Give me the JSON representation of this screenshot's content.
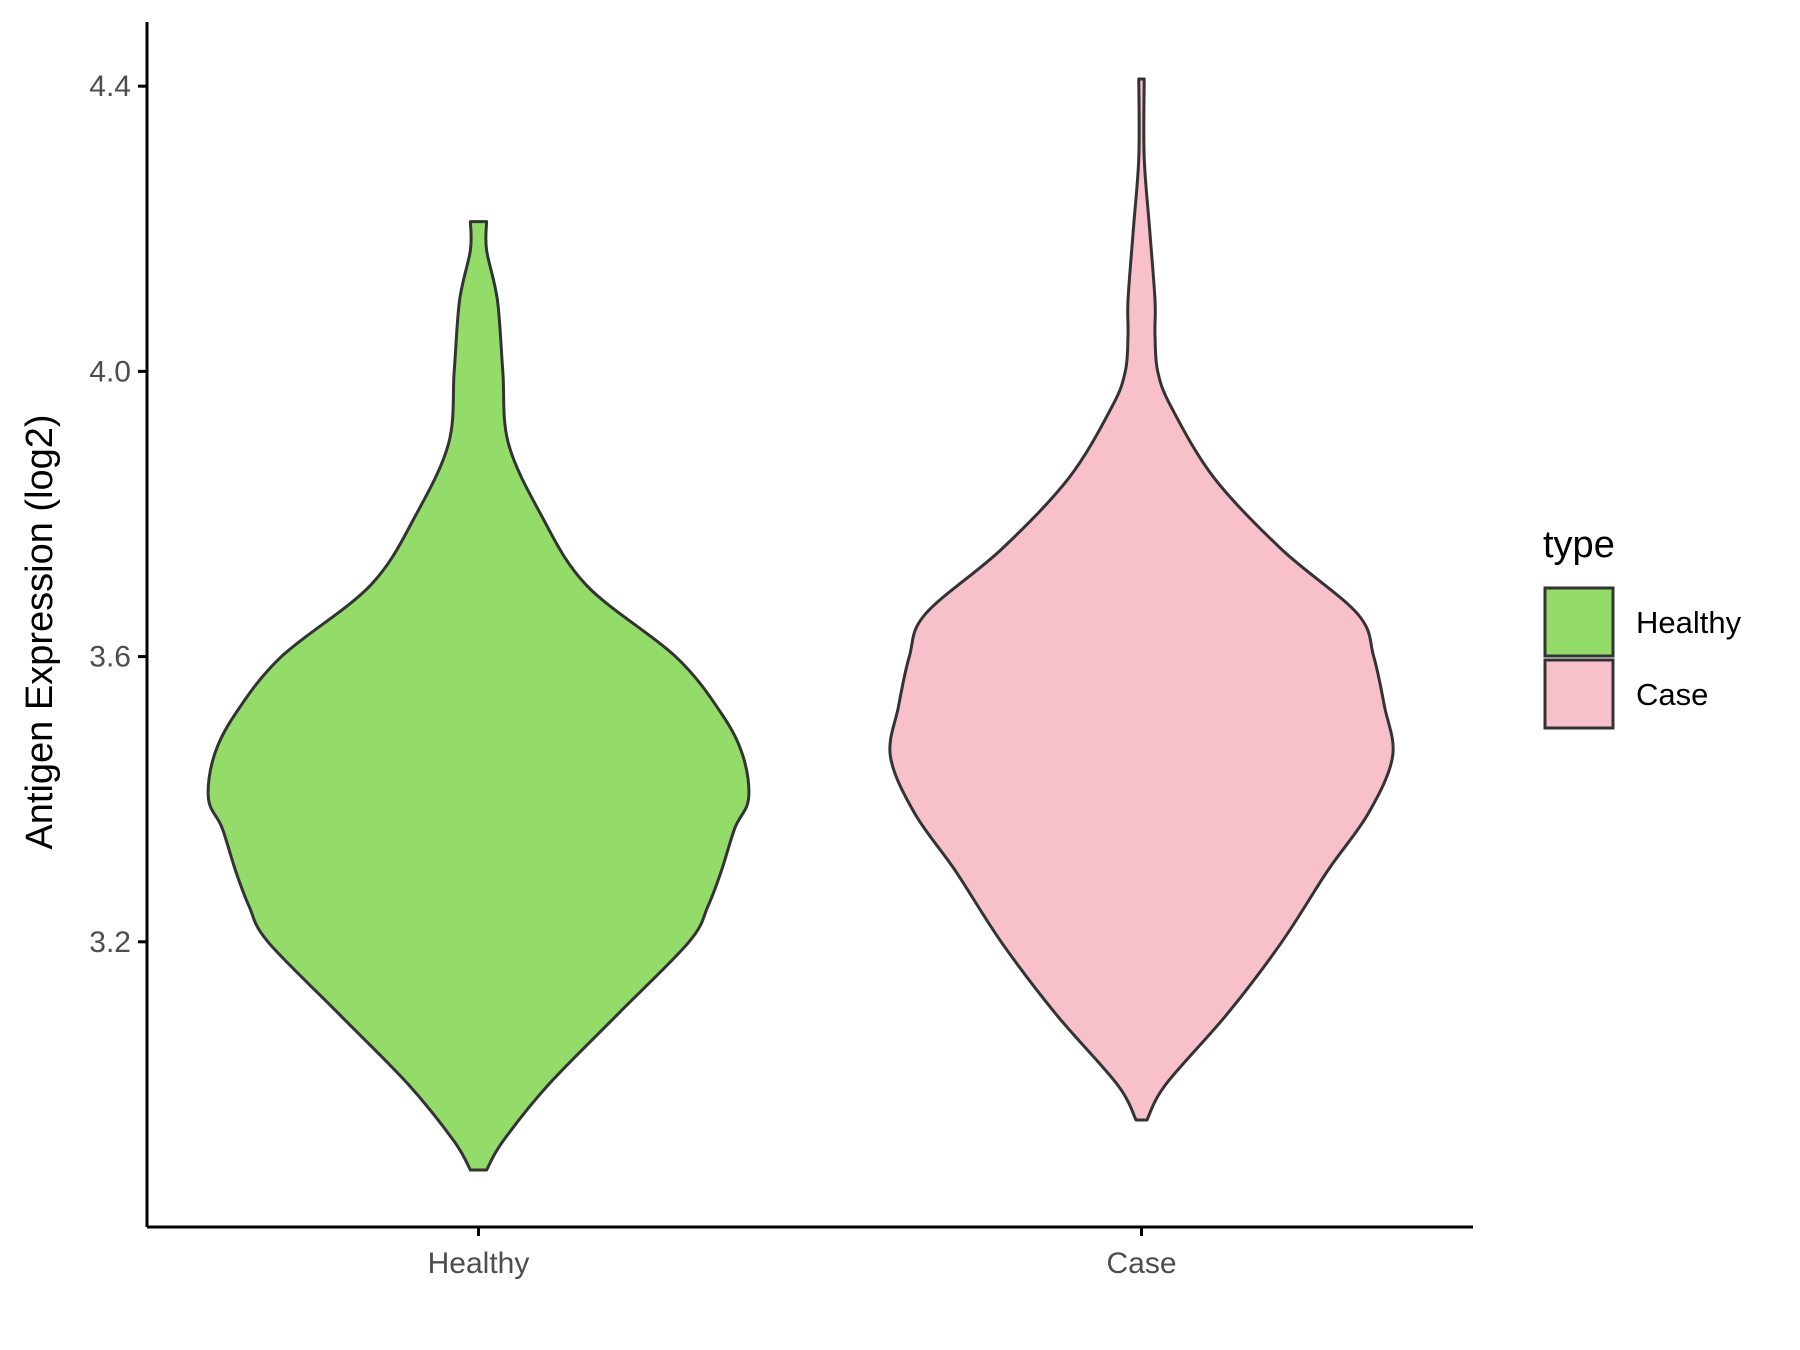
{
  "chart_data": {
    "type": "violin",
    "ylabel": "Antigen Expression (log2)",
    "xlabel": "",
    "ylim": [
      2.8,
      4.49
    ],
    "yticks": [
      3.2,
      3.6,
      4.0,
      4.4
    ],
    "ytick_labels": [
      "3.2",
      "3.6",
      "4.0",
      "4.4"
    ],
    "categories": [
      "Healthy",
      "Case"
    ],
    "legend": {
      "title": "type",
      "position": "right",
      "entries": [
        "Healthy",
        "Case"
      ]
    },
    "series": [
      {
        "name": "Healthy",
        "color": "#93DC6A",
        "min": 2.88,
        "max": 4.21,
        "profile": [
          [
            2.88,
            0.03
          ],
          [
            2.92,
            0.09
          ],
          [
            3.0,
            0.26
          ],
          [
            3.1,
            0.52
          ],
          [
            3.2,
            0.78
          ],
          [
            3.25,
            0.85
          ],
          [
            3.3,
            0.9
          ],
          [
            3.36,
            0.95
          ],
          [
            3.4,
            1.0
          ],
          [
            3.46,
            0.98
          ],
          [
            3.52,
            0.9
          ],
          [
            3.6,
            0.73
          ],
          [
            3.7,
            0.4
          ],
          [
            3.8,
            0.23
          ],
          [
            3.9,
            0.11
          ],
          [
            4.0,
            0.09
          ],
          [
            4.1,
            0.07
          ],
          [
            4.17,
            0.03
          ],
          [
            4.21,
            0.03
          ]
        ]
      },
      {
        "name": "Case",
        "color": "#F8C0CB",
        "min": 2.95,
        "max": 4.41,
        "profile": [
          [
            2.95,
            0.02
          ],
          [
            3.0,
            0.09
          ],
          [
            3.1,
            0.32
          ],
          [
            3.2,
            0.52
          ],
          [
            3.3,
            0.69
          ],
          [
            3.38,
            0.84
          ],
          [
            3.46,
            0.93
          ],
          [
            3.53,
            0.9
          ],
          [
            3.6,
            0.86
          ],
          [
            3.66,
            0.8
          ],
          [
            3.75,
            0.52
          ],
          [
            3.85,
            0.27
          ],
          [
            3.95,
            0.11
          ],
          [
            4.0,
            0.06
          ],
          [
            4.05,
            0.05
          ],
          [
            4.1,
            0.05
          ],
          [
            4.2,
            0.03
          ],
          [
            4.3,
            0.01
          ],
          [
            4.41,
            0.01
          ]
        ]
      }
    ]
  }
}
